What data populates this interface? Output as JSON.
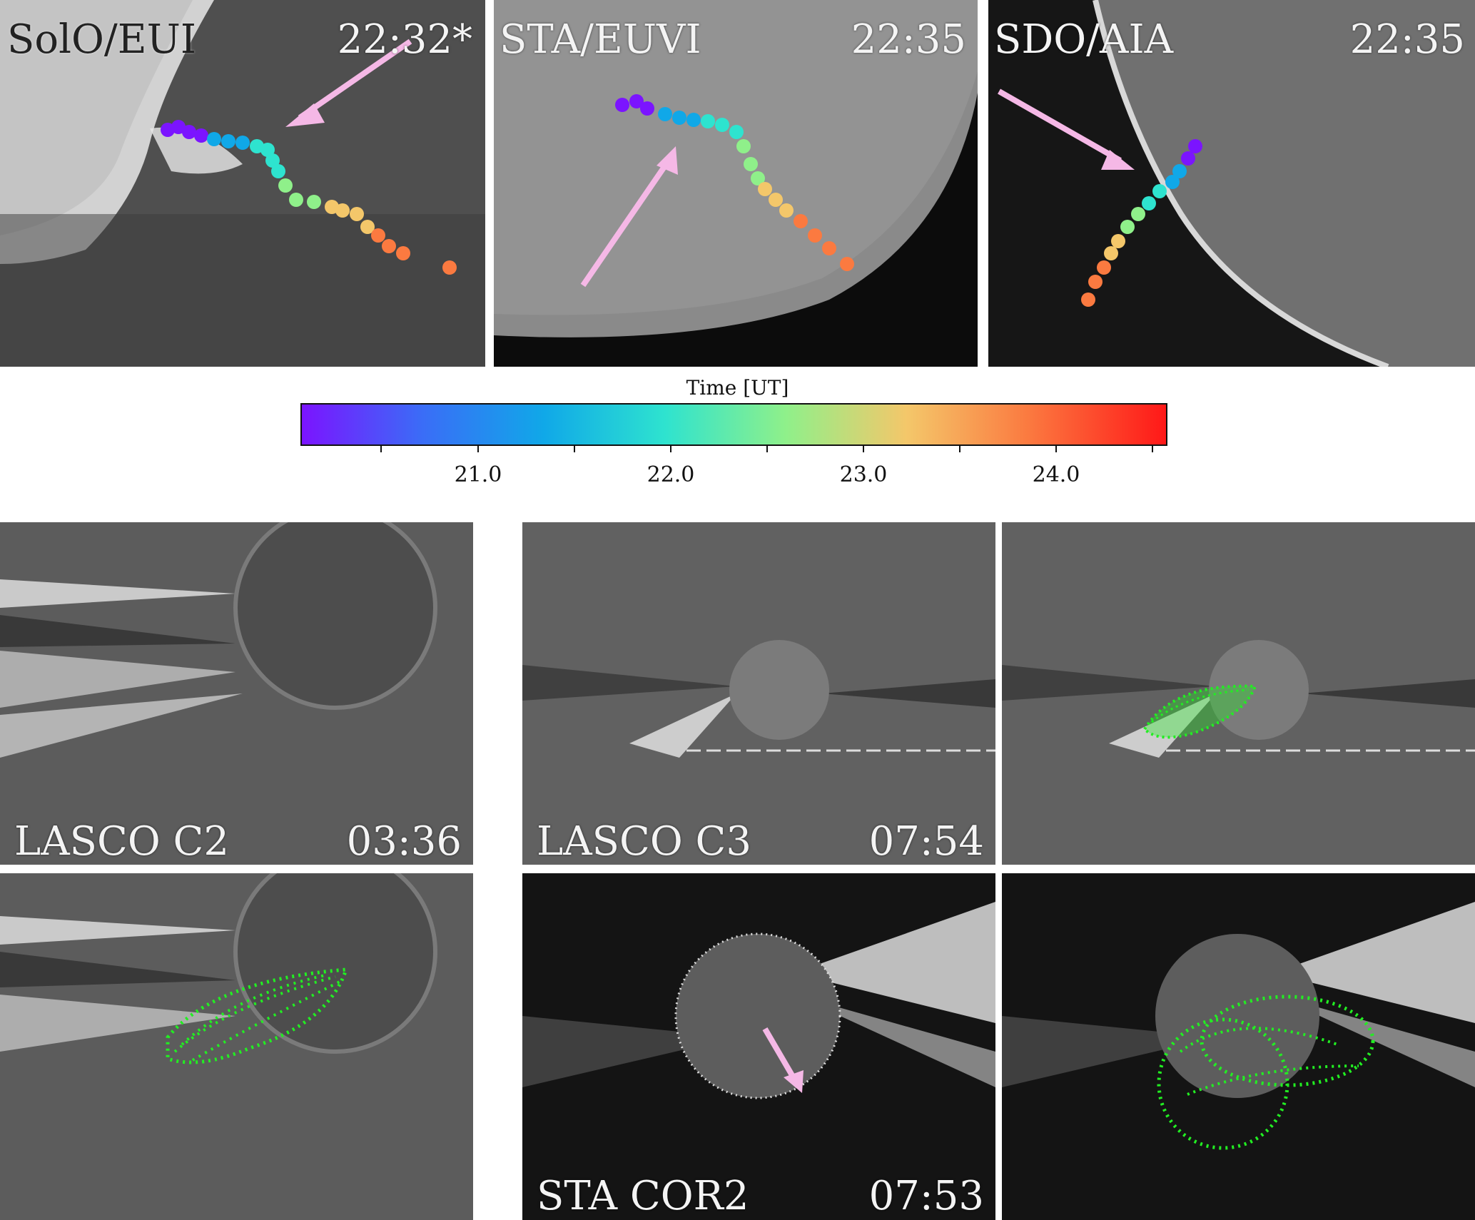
{
  "top_panels": [
    {
      "label": "SolO/EUI",
      "time": "22:32*"
    },
    {
      "label": "STA/EUVI",
      "time": "22:35"
    },
    {
      "label": "SDO/AIA",
      "time": "22:35"
    }
  ],
  "colorbar": {
    "title": "Time [UT]",
    "tick_labels": [
      "21.0",
      "22.0",
      "23.0",
      "24.0"
    ],
    "colors": [
      "#7b14ff",
      "#10a8e8",
      "#2ee3cf",
      "#8ff08a",
      "#f4c76a",
      "#fb7a40",
      "#ff1818"
    ]
  },
  "bottom_panels": {
    "lasco_c2": {
      "label": "LASCO C2",
      "time": "03:36"
    },
    "lasco_c3": {
      "label": "LASCO C3",
      "time": "07:54"
    },
    "sta_cor2": {
      "label": "STA COR2",
      "time": "07:53"
    }
  },
  "colors": {
    "arrow": "#f5b8e6",
    "model_mesh": "#22ee22"
  }
}
